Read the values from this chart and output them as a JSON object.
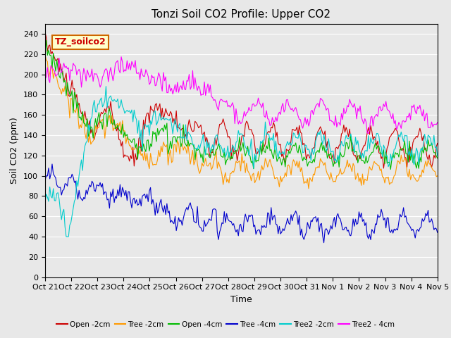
{
  "title": "Tonzi Soil CO2 Profile: Upper CO2",
  "xlabel": "Time",
  "ylabel": "Soil CO2 (ppm)",
  "ylim": [
    0,
    250
  ],
  "yticks": [
    0,
    20,
    40,
    60,
    80,
    100,
    120,
    140,
    160,
    180,
    200,
    220,
    240
  ],
  "xtick_labels": [
    "Oct 21",
    "Oct 22",
    "Oct 23",
    "Oct 24",
    "Oct 25",
    "Oct 26",
    "Oct 27",
    "Oct 28",
    "Oct 29",
    "Oct 30",
    "Oct 31",
    "Nov 1",
    "Nov 2",
    "Nov 3",
    "Nov 4",
    "Nov 5"
  ],
  "legend_label": "TZ_soilco2",
  "series_labels": [
    "Open -2cm",
    "Tree -2cm",
    "Open -4cm",
    "Tree -4cm",
    "Tree2 -2cm",
    "Tree2 - 4cm"
  ],
  "series_colors": [
    "#cc0000",
    "#ff9900",
    "#00bb00",
    "#0000cc",
    "#00cccc",
    "#ff00ff"
  ],
  "background_color": "#e8e8e8",
  "plot_bg_color": "#e8e8e8",
  "n_points": 336,
  "grid_color": "#ffffff",
  "title_fontsize": 11,
  "axis_fontsize": 9,
  "tick_fontsize": 8
}
